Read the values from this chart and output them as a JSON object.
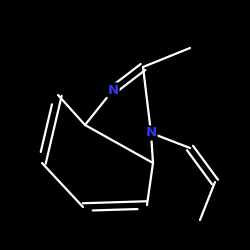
{
  "background_color": "#000000",
  "bond_color": "#ffffff",
  "nitrogen_color": "#3636ee",
  "line_width": 1.6,
  "font_size": 9.5,
  "figsize": [
    2.5,
    2.5
  ],
  "dpi": 100,
  "xlim": [
    -2.5,
    3.5
  ],
  "ylim": [
    -3.5,
    2.5
  ]
}
